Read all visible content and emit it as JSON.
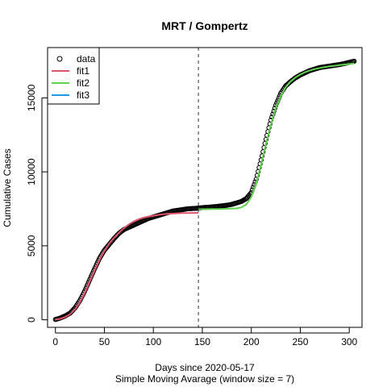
{
  "chart_data": {
    "type": "line",
    "title": "MRT / Gompertz",
    "xlabel": "Days since 2020-05-17",
    "subtitle": "Simple Moving Avarage (window size = 7)",
    "ylabel": "Cumulative Cases",
    "xlim": [
      -8,
      313
    ],
    "ylim": [
      -510,
      18400
    ],
    "xticks": [
      0,
      50,
      100,
      150,
      200,
      250,
      300
    ],
    "yticks": [
      0,
      5000,
      10000,
      15000
    ],
    "vline": 146,
    "legend": {
      "position": "top-left",
      "entries": [
        {
          "label": "data",
          "kind": "point",
          "color": "#000000"
        },
        {
          "label": "fit1",
          "kind": "line",
          "color": "#DF536B"
        },
        {
          "label": "fit2",
          "kind": "line",
          "color": "#61D04F"
        },
        {
          "label": "fit3",
          "kind": "line",
          "color": "#2297E6"
        }
      ]
    },
    "data_points": {
      "x": [
        0,
        5,
        10,
        15,
        20,
        25,
        30,
        35,
        40,
        45,
        50,
        55,
        60,
        65,
        70,
        75,
        80,
        85,
        90,
        95,
        100,
        105,
        110,
        115,
        120,
        125,
        130,
        135,
        140,
        145,
        150,
        155,
        160,
        165,
        170,
        175,
        180,
        185,
        190,
        195,
        200,
        205,
        210,
        215,
        220,
        225,
        230,
        235,
        240,
        245,
        250,
        255,
        260,
        265,
        270,
        275,
        280,
        285,
        290,
        295,
        300,
        305
      ],
      "y": [
        20,
        120,
        260,
        450,
        800,
        1300,
        1950,
        2700,
        3450,
        4150,
        4700,
        5100,
        5500,
        5850,
        6100,
        6250,
        6400,
        6550,
        6700,
        6850,
        6950,
        7050,
        7150,
        7250,
        7350,
        7400,
        7450,
        7500,
        7520,
        7540,
        7580,
        7600,
        7630,
        7660,
        7700,
        7740,
        7800,
        7900,
        8000,
        8200,
        8600,
        9500,
        10800,
        12200,
        13500,
        14500,
        15300,
        15800,
        16100,
        16350,
        16550,
        16700,
        16850,
        16950,
        17050,
        17100,
        17150,
        17200,
        17250,
        17320,
        17400,
        17480
      ]
    },
    "series": [
      {
        "name": "fit1",
        "color": "#DF536B",
        "x": [
          0,
          5,
          10,
          15,
          20,
          25,
          30,
          35,
          40,
          45,
          50,
          55,
          60,
          65,
          70,
          75,
          80,
          85,
          90,
          95,
          100,
          105,
          110,
          115,
          120,
          125,
          130,
          135,
          140,
          146
        ],
        "y": [
          10,
          70,
          190,
          380,
          700,
          1180,
          1820,
          2580,
          3350,
          4050,
          4650,
          5150,
          5550,
          5900,
          6200,
          6450,
          6650,
          6800,
          6900,
          6980,
          7040,
          7090,
          7130,
          7160,
          7180,
          7200,
          7210,
          7220,
          7225,
          7230
        ]
      },
      {
        "name": "fit2",
        "color": "#61D04F",
        "x": [
          146,
          150,
          155,
          160,
          165,
          170,
          175,
          180,
          185,
          190,
          195,
          200,
          205,
          210,
          215,
          220,
          225,
          230,
          235,
          240,
          245,
          250,
          255,
          260,
          265,
          270,
          275,
          280,
          285,
          290,
          295,
          300,
          305
        ],
        "y": [
          7470,
          7475,
          7480,
          7485,
          7490,
          7495,
          7500,
          7510,
          7530,
          7600,
          7800,
          8300,
          9200,
          10500,
          11900,
          13200,
          14300,
          15100,
          15700,
          16100,
          16380,
          16580,
          16740,
          16860,
          16950,
          17020,
          17080,
          17130,
          17170,
          17210,
          17250,
          17290,
          17330
        ]
      },
      {
        "name": "fit3",
        "color": "#2297E6",
        "x": [],
        "y": []
      }
    ]
  }
}
